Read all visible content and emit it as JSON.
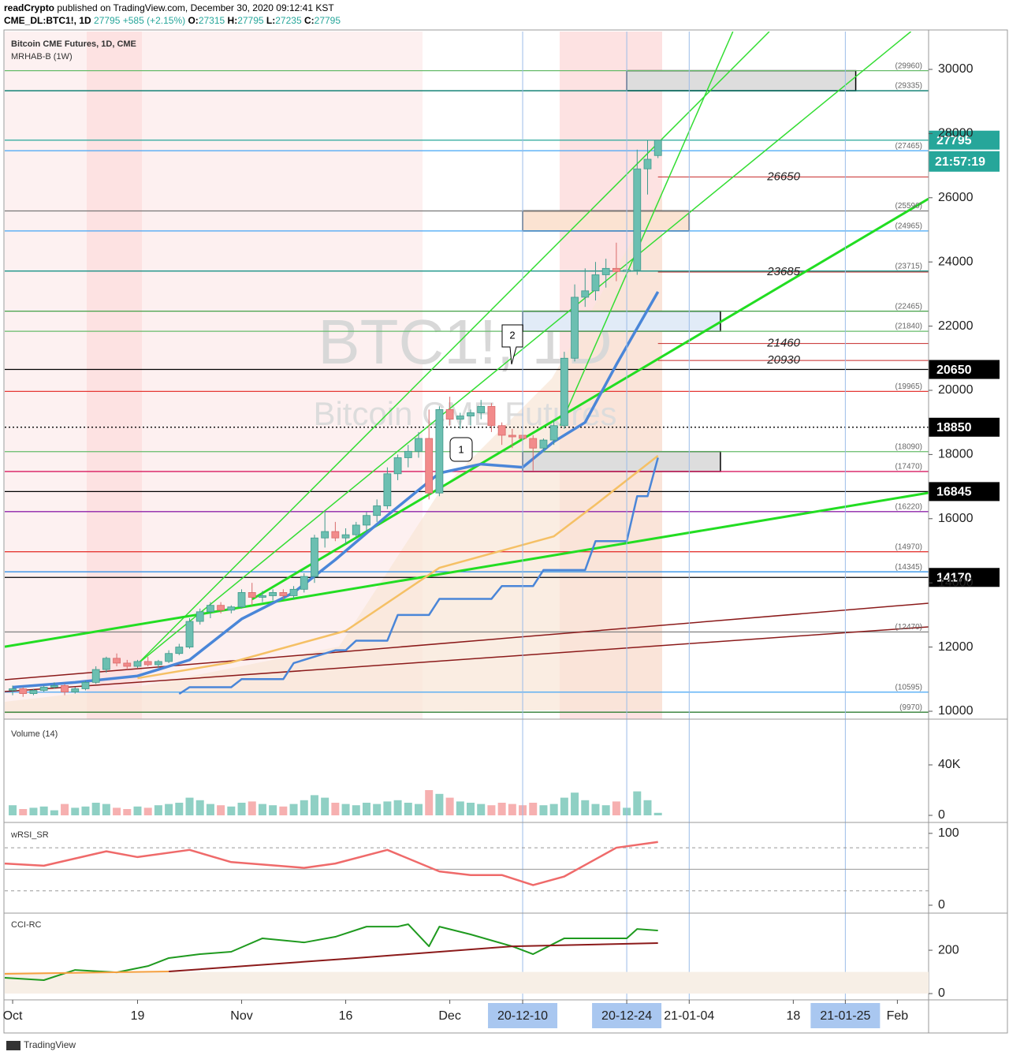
{
  "header": {
    "author": "readCrypto",
    "published": "published on TradingView.com, December 30, 2020 09:12:41 KST",
    "symbol": "CME_DL:BTC1!, 1D",
    "last": 27795,
    "change": "+585 (+2.15%)",
    "ohlc": [
      {
        "label": "O:",
        "value": 27315
      },
      {
        "label": "H:",
        "value": 27795
      },
      {
        "label": "L:",
        "value": 27235
      },
      {
        "label": "C:",
        "value": 27795
      }
    ]
  },
  "footer": "TradingView",
  "callouts": [
    "1",
    "2"
  ],
  "chart_data": [
    {
      "type": "candlestick",
      "title": "Bitcoin CME Futures, 1D, CME",
      "indicator": "MRHAB-B (1W)",
      "watermark": [
        "BTC1!, 1D",
        "Bitcoin CME Futures"
      ],
      "up_color": "#6cbfb1",
      "down_color": "#f28b8b",
      "x": [
        0,
        1,
        2,
        3,
        4,
        5,
        6,
        7,
        8,
        9,
        10,
        11,
        12,
        13,
        14,
        15,
        16,
        17,
        18,
        19,
        20,
        21,
        22,
        23,
        24,
        25,
        26,
        27,
        28,
        29,
        30,
        31,
        32,
        33,
        34,
        35,
        36,
        37,
        38,
        39,
        40,
        41,
        42,
        43,
        44,
        45,
        46,
        47,
        48,
        49,
        50,
        51,
        52,
        53,
        54,
        55,
        56,
        57,
        58,
        59,
        60,
        61,
        62
      ],
      "open": [
        10650,
        10700,
        10550,
        10650,
        10750,
        10800,
        10600,
        10700,
        10900,
        11300,
        11650,
        11500,
        11400,
        11550,
        11450,
        11550,
        11800,
        12000,
        12800,
        13100,
        13300,
        13150,
        13250,
        13700,
        13550,
        13600,
        13700,
        13600,
        13800,
        14200,
        15400,
        15600,
        15400,
        15500,
        15800,
        16100,
        16400,
        17400,
        17900,
        18100,
        18500,
        16800,
        19400,
        19100,
        19200,
        19300,
        19500,
        18900,
        18600,
        18600,
        18500,
        18200,
        18450,
        18900,
        21000,
        22900,
        23100,
        23600,
        23800,
        23700,
        23750,
        26900,
        27315
      ],
      "high": [
        10800,
        10750,
        10700,
        10800,
        10900,
        10850,
        10750,
        10950,
        11400,
        11700,
        11800,
        11600,
        11600,
        11700,
        11600,
        11900,
        12100,
        12900,
        13200,
        13400,
        13400,
        13300,
        13800,
        14000,
        13750,
        13800,
        13800,
        13900,
        14300,
        15500,
        16200,
        15900,
        15700,
        15900,
        16200,
        16600,
        17600,
        18000,
        18300,
        18700,
        19400,
        19500,
        19800,
        19300,
        19400,
        19700,
        19600,
        19000,
        18800,
        18700,
        18600,
        18500,
        19100,
        21200,
        23300,
        23800,
        24000,
        24100,
        24600,
        24000,
        27500,
        27800,
        27795
      ],
      "low": [
        10500,
        10450,
        10500,
        10600,
        10700,
        10500,
        10550,
        10650,
        10850,
        11200,
        11400,
        11300,
        11350,
        11400,
        11350,
        11500,
        11750,
        11950,
        12700,
        12900,
        13050,
        13050,
        13200,
        13300,
        13400,
        13450,
        13500,
        13500,
        13700,
        14000,
        15100,
        15300,
        15200,
        15400,
        15600,
        15900,
        16300,
        17200,
        17600,
        17900,
        16600,
        16700,
        18900,
        18800,
        18900,
        19100,
        18700,
        18300,
        18200,
        18300,
        17500,
        18100,
        18300,
        18800,
        20900,
        22600,
        22800,
        23200,
        23400,
        23500,
        23600,
        26100,
        27235
      ],
      "close": [
        10700,
        10550,
        10650,
        10750,
        10800,
        10600,
        10700,
        10900,
        11300,
        11650,
        11500,
        11400,
        11550,
        11450,
        11550,
        11800,
        12000,
        12800,
        13100,
        13300,
        13150,
        13250,
        13700,
        13550,
        13600,
        13700,
        13600,
        13800,
        14200,
        15400,
        15600,
        15400,
        15500,
        15800,
        16100,
        16400,
        17400,
        17900,
        18100,
        18500,
        16800,
        19400,
        19100,
        19200,
        19300,
        19500,
        18900,
        18600,
        18550,
        18500,
        18200,
        18450,
        18900,
        21000,
        22900,
        23100,
        23600,
        23800,
        23700,
        23750,
        26900,
        27200,
        27795
      ],
      "xlim": [
        -0.76,
        88
      ],
      "ylim": [
        9754,
        31179
      ],
      "yticks": [
        10000,
        12000,
        14000,
        16000,
        18000,
        20000,
        22000,
        24000,
        26000,
        28000,
        30000
      ],
      "xticks": [
        {
          "value": 0,
          "label": "Oct"
        },
        {
          "value": 12,
          "label": "19"
        },
        {
          "value": 22,
          "label": "Nov"
        },
        {
          "value": 32,
          "label": "16"
        },
        {
          "value": 42,
          "label": "Dec"
        },
        {
          "value": 49,
          "label": "20-12-10"
        },
        {
          "value": 59,
          "label": "20-12-24"
        },
        {
          "value": 65,
          "label": "21-01-04"
        },
        {
          "value": 75,
          "label": "18"
        },
        {
          "value": 80,
          "label": "21-01-25"
        },
        {
          "value": 85,
          "label": "Feb"
        }
      ],
      "highlight": [
        49,
        59,
        80
      ],
      "vlines": [
        49,
        59,
        65,
        80
      ],
      "levels": [
        {
          "value": 29960,
          "label": "(29960)",
          "color": "#66bb6a"
        },
        {
          "value": 29335,
          "label": "(29335)",
          "color": "#00796b"
        },
        {
          "value": 27465,
          "label": "(27465)",
          "color": "#42a5f5"
        },
        {
          "value": 25590,
          "label": "(25590)",
          "color": "#777777"
        },
        {
          "value": 24965,
          "label": "(24965)",
          "color": "#42a5f5"
        },
        {
          "value": 23715,
          "label": "(23715)",
          "color": "#00897b"
        },
        {
          "value": 22465,
          "label": "(22465)",
          "color": "#43a047"
        },
        {
          "value": 21840,
          "label": "(21840)",
          "color": "#66bb6a"
        },
        {
          "value": 19965,
          "label": "(19965)",
          "color": "#e53935"
        },
        {
          "value": 18090,
          "label": "(18090)",
          "color": "#66bb6a"
        },
        {
          "value": 17470,
          "label": "(17470)",
          "color": "#d81b60"
        },
        {
          "value": 16220,
          "label": "(16220)",
          "color": "#8e24aa"
        },
        {
          "value": 14970,
          "label": "(14970)",
          "color": "#e53935"
        },
        {
          "value": 14345,
          "label": "(14345)",
          "color": "#1e88e5"
        },
        {
          "value": 12470,
          "label": "(12470)",
          "color": "#888888"
        },
        {
          "value": 10595,
          "label": "(10595)",
          "color": "#42a5f5"
        },
        {
          "value": 9970,
          "label": "(9970)",
          "color": "#2e7d32"
        }
      ],
      "price_labels": [
        {
          "price": 27795,
          "color": "#26a69a",
          "line": "#26a69a"
        },
        {
          "price": 20650,
          "color": "#000000",
          "line": "#000000"
        },
        {
          "price": 18850,
          "color": "#000000",
          "line": "dotted"
        },
        {
          "price": 16845,
          "color": "#000000",
          "line": "#000000"
        },
        {
          "price": 14170,
          "color": "#000000",
          "line": "#000000"
        }
      ],
      "countdown": "21:57:19",
      "notes": [
        26650,
        23685,
        21460,
        20930
      ],
      "zones": [
        {
          "x": [
            59,
            81
          ],
          "y": [
            29335,
            29960
          ],
          "color": "#dddddd"
        },
        {
          "x": [
            49,
            65
          ],
          "y": [
            24965,
            25590
          ],
          "color": "#fbe3d2"
        },
        {
          "x": [
            49,
            68
          ],
          "y": [
            21840,
            22465
          ],
          "color": "#e1ebf7"
        },
        {
          "x": [
            49,
            68
          ],
          "y": [
            17470,
            18090
          ],
          "color": "#dddddd"
        }
      ],
      "trendlines": [
        {
          "x": [
            12,
            72.7
          ],
          "values": [
            11474,
            31179
          ],
          "color": "#33dd33",
          "width": 1.5
        },
        {
          "x": [
            12,
            86.3
          ],
          "values": [
            11474,
            31179
          ],
          "color": "#33dd33",
          "width": 1.5
        },
        {
          "x": [
            52.6,
            69.2
          ],
          "values": [
            18900,
            31179
          ],
          "color": "#33dd33",
          "width": 1.5
        },
        {
          "x": [
            -0.76,
            88
          ],
          "values": [
            12010,
            16806
          ],
          "color": "#22dd22",
          "width": 3
        },
        {
          "x": [
            23,
            88
          ],
          "values": [
            13489,
            25970
          ],
          "color": "#22dd22",
          "width": 3
        },
        {
          "x": [
            -0.76,
            88
          ],
          "values": [
            10983,
            13366
          ],
          "color": "#8b1a1a",
          "width": 1.5
        },
        {
          "x": [
            -0.76,
            88
          ],
          "values": [
            10614,
            12629
          ],
          "color": "#8b1a1a",
          "width": 1.5
        }
      ],
      "lines": [
        {
          "color": "#4a86d8",
          "width": 3.5,
          "x": [
            0,
            6,
            12,
            17,
            22,
            27,
            31,
            36,
            41,
            45,
            49,
            52,
            55,
            58,
            62
          ],
          "values": [
            10750,
            10900,
            11100,
            11600,
            12875,
            13700,
            14720,
            16100,
            17420,
            17700,
            17600,
            18400,
            19000,
            20800,
            23070
          ]
        },
        {
          "color": "#f5c065",
          "width": 2.5,
          "x": [
            12,
            21,
            32,
            41,
            52,
            56,
            62
          ],
          "values": [
            11030,
            11523,
            12506,
            14470,
            15450,
            16437,
            17960
          ]
        },
        {
          "color": "#4a86d8",
          "width": 2.5,
          "x": [
            16,
            17,
            21,
            22,
            26,
            27,
            31,
            32,
            33,
            36,
            37,
            40,
            41,
            46,
            47,
            50,
            51,
            55,
            56,
            59,
            60,
            61,
            62
          ],
          "values": [
            10540,
            10750,
            10750,
            11000,
            11000,
            11500,
            11900,
            11900,
            12200,
            12200,
            13000,
            13000,
            13500,
            13500,
            13900,
            13900,
            14400,
            14400,
            15300,
            15300,
            16700,
            16700,
            17900
          ]
        }
      ]
    },
    {
      "type": "bar",
      "title": "Volume (14)",
      "values": [
        8000,
        5000,
        6000,
        7000,
        4000,
        9000,
        6000,
        7000,
        10000,
        9000,
        6000,
        5000,
        7000,
        6000,
        8000,
        9000,
        10000,
        14000,
        12000,
        9000,
        8000,
        7000,
        10000,
        11000,
        9000,
        8000,
        7000,
        9000,
        12000,
        16000,
        14000,
        10000,
        9000,
        8000,
        10000,
        9000,
        11000,
        12000,
        10000,
        9000,
        20000,
        17000,
        14000,
        11000,
        10000,
        9000,
        8000,
        10000,
        9000,
        8000,
        10000,
        8000,
        9000,
        14000,
        18000,
        12000,
        9000,
        8000,
        11000,
        6000,
        19000,
        12000,
        2000
      ],
      "ylim": [
        -5000,
        74375
      ],
      "yticks": [
        0,
        {
          "value": 40000,
          "label": "40K"
        }
      ]
    },
    {
      "type": "line",
      "title": "wRSI_SR",
      "color": "#ef6a6a",
      "x": [
        -0.76,
        3,
        9,
        12,
        17,
        21,
        28,
        31,
        36,
        41,
        44,
        47,
        50,
        53,
        58,
        62
      ],
      "values": [
        58,
        55,
        75,
        67,
        77,
        60,
        52,
        58,
        77,
        47,
        42,
        42,
        28,
        40,
        80,
        88
      ],
      "ylim": [
        -11,
        113
      ],
      "yticks": [
        0,
        100
      ],
      "levels": [
        80,
        50,
        20
      ]
    },
    {
      "type": "line",
      "title": "CCI-RC",
      "series": [
        {
          "color": "#1f9a1f",
          "x": [
            -0.76,
            3,
            6,
            10,
            13,
            15,
            18,
            21,
            24,
            28,
            31,
            34,
            37,
            38,
            40,
            41,
            44,
            48,
            50,
            53,
            56,
            59,
            60,
            62
          ],
          "values": [
            73,
            62,
            109,
            98,
            127,
            164,
            182,
            193,
            255,
            236,
            262,
            309,
            309,
            320,
            218,
            309,
            273,
            218,
            182,
            255,
            255,
            255,
            298,
            291
          ]
        },
        {
          "color": "#8b1a1a",
          "x": [
            15,
            33,
            48,
            62
          ],
          "values": [
            102,
            164,
            218,
            233
          ]
        },
        {
          "color": "#f5a040",
          "x": [
            -0.76,
            15
          ],
          "values": [
            91,
            102
          ]
        }
      ],
      "ylim": [
        -29,
        364
      ],
      "yticks": [
        0,
        200
      ]
    }
  ]
}
